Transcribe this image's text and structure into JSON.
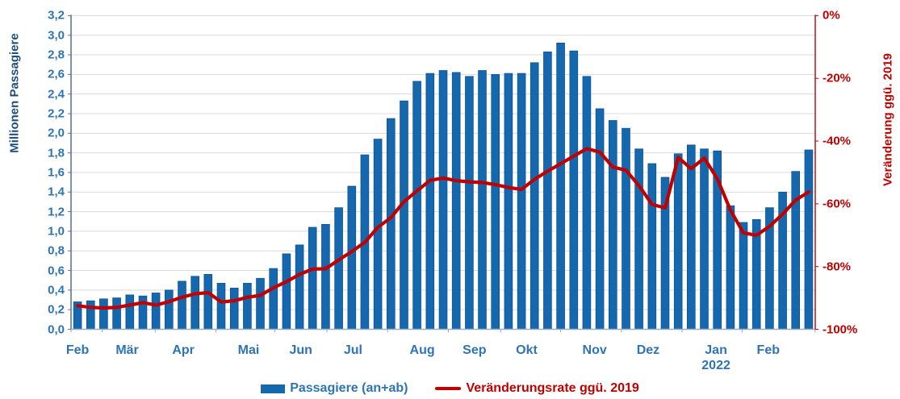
{
  "chart_data": {
    "type": "bar+line",
    "title": "",
    "left_axis": {
      "label": "Millionen Passagiere",
      "min": 0,
      "max": 3.2,
      "tick_step": 0.2,
      "tick_labels_top_to_bottom": [
        "3,2",
        "3,0",
        "2,8",
        "2,6",
        "2,4",
        "2,2",
        "2,0",
        "1,8",
        "1,6",
        "1,4",
        "1,2",
        "1,0",
        "0,8",
        "0,6",
        "0,4",
        "0,2",
        "0,0"
      ],
      "tick_color": "#2E74B5",
      "title_color": "#1F4E79"
    },
    "right_axis": {
      "label": "Veränderung ggü. 2019",
      "min": -100,
      "max": 0,
      "tick_labels_top_to_bottom": [
        "0%",
        "-20%",
        "-40%",
        "-60%",
        "-80%",
        "-100%"
      ],
      "tick_color": "#C00000",
      "title_color": "#C00000"
    },
    "x_axis": {
      "months": [
        {
          "label": "Feb",
          "center_week": 0.5
        },
        {
          "label": "Mär",
          "center_week": 4.3
        },
        {
          "label": "Apr",
          "center_week": 8.6
        },
        {
          "label": "Mai",
          "center_week": 13.6
        },
        {
          "label": "Jun",
          "center_week": 17.6
        },
        {
          "label": "Jul",
          "center_week": 21.6
        },
        {
          "label": "Aug",
          "center_week": 26.9
        },
        {
          "label": "Sep",
          "center_week": 30.9
        },
        {
          "label": "Okt",
          "center_week": 34.9
        },
        {
          "label": "Nov",
          "center_week": 40.1
        },
        {
          "label": "Dez",
          "center_week": 44.2
        },
        {
          "label": "Jan",
          "sublabel": "2022",
          "center_week": 49.4
        },
        {
          "label": "Feb",
          "center_week": 53.4
        }
      ]
    },
    "grid": {
      "horizontal": true,
      "color": "#D9D9D9"
    },
    "series": [
      {
        "name": "Passagiere (an+ab)",
        "type": "bar",
        "axis": "left",
        "unit": "Millionen",
        "color": "#1668AE",
        "border_color": "#0D5391",
        "values": [
          0.28,
          0.29,
          0.31,
          0.32,
          0.35,
          0.34,
          0.37,
          0.4,
          0.49,
          0.54,
          0.56,
          0.47,
          0.42,
          0.47,
          0.52,
          0.62,
          0.77,
          0.86,
          1.04,
          1.07,
          1.24,
          1.46,
          1.78,
          1.94,
          2.15,
          2.33,
          2.53,
          2.61,
          2.64,
          2.62,
          2.58,
          2.64,
          2.6,
          2.61,
          2.61,
          2.72,
          2.83,
          2.92,
          2.84,
          2.58,
          2.25,
          2.13,
          2.05,
          1.84,
          1.69,
          1.55,
          1.79,
          1.88,
          1.84,
          1.82,
          1.26,
          1.09,
          1.12,
          1.24,
          1.4,
          1.61,
          1.83
        ]
      },
      {
        "name": "Veränderungsrate ggü. 2019",
        "type": "line",
        "axis": "right",
        "unit": "%",
        "color": "#C00000",
        "values": [
          -92.5,
          -93.0,
          -93.2,
          -93.0,
          -92.3,
          -91.5,
          -92.3,
          -91.2,
          -89.8,
          -88.7,
          -88.3,
          -91.3,
          -90.9,
          -89.8,
          -89.2,
          -86.8,
          -84.8,
          -82.5,
          -80.8,
          -80.7,
          -77.9,
          -75.2,
          -72.3,
          -67.5,
          -64.4,
          -59.3,
          -55.9,
          -52.5,
          -51.8,
          -52.6,
          -53.0,
          -53.2,
          -53.9,
          -54.8,
          -55.4,
          -52.2,
          -49.6,
          -47.2,
          -44.8,
          -42.4,
          -43.5,
          -48.3,
          -49.3,
          -54.2,
          -60.2,
          -61.3,
          -45.2,
          -48.8,
          -45.4,
          -52.0,
          -62.0,
          -69.3,
          -70.0,
          -67.2,
          -63.3,
          -58.8,
          -56.2
        ]
      }
    ]
  },
  "legend": {
    "items": [
      {
        "label": "Passagiere (an+ab)",
        "swatch": "bar",
        "color": "#1668AE",
        "text_color": "#2E74B5"
      },
      {
        "label": "Veränderungsrate ggü. 2019",
        "swatch": "line",
        "color": "#C00000",
        "text_color": "#C00000"
      }
    ]
  }
}
